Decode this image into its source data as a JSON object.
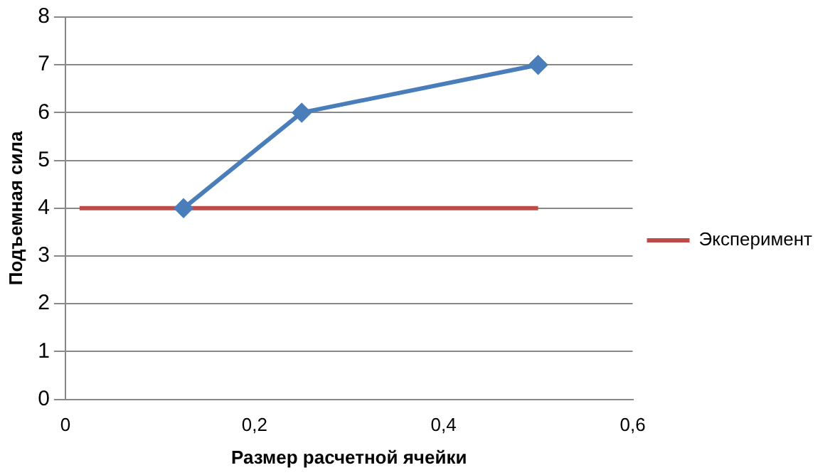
{
  "chart_data": {
    "type": "line",
    "xlabel": "Размер расчетной ячейки",
    "ylabel": "Подъемная сила",
    "xlim": [
      0,
      0.6
    ],
    "xticks": [
      0,
      {
        "value": 0.2,
        "label": "0,2"
      },
      {
        "value": 0.4,
        "label": "0,4"
      },
      {
        "value": 0.6,
        "label": "0,6"
      }
    ],
    "ylim": [
      0,
      8
    ],
    "yticks": [
      0,
      1,
      2,
      3,
      4,
      5,
      6,
      7,
      8
    ],
    "grid": "y",
    "legend": "right",
    "series": [
      {
        "color": "#4a7ebb",
        "marker": "diamond",
        "x": [
          0.125,
          0.25,
          0.5
        ],
        "values": [
          4,
          6,
          7
        ]
      },
      {
        "name": "Эксперимент",
        "color": "#be4b48",
        "marker": "none",
        "x": [
          0.015,
          0.5
        ],
        "values": [
          4,
          4
        ]
      }
    ]
  }
}
